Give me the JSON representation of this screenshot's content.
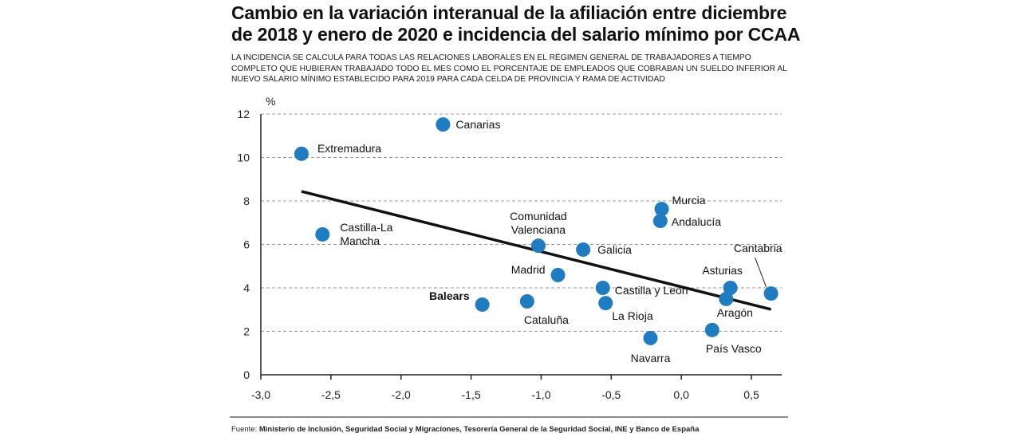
{
  "header": {
    "title": "Cambio en la variación interanual de la afiliación entre diciembre de 2018 y enero de 2020 e incidencia del salario mínimo por CCAA",
    "subtitle": "La incidencia se calcula para todas las relaciones laborales en el régimen general de trabajadores a tiempo completo que hubieran trabajado todo el mes como el porcentaje de empleados que cobraban un sueldo inferior al nuevo salario mínimo establecido para 2019 para cada celda de provincia y rama de actividad"
  },
  "chart_data": {
    "type": "scatter",
    "title": "Cambio en la variación interanual de la afiliación entre diciembre de 2018 y enero de 2020 e incidencia del salario mínimo por CCAA",
    "xlabel": "",
    "ylabel": "%",
    "xlim": [
      -3.0,
      0.7
    ],
    "ylim": [
      0,
      12
    ],
    "x_ticks": [
      -3.0,
      -2.5,
      -2.0,
      -1.5,
      -1.0,
      -0.5,
      0.0,
      0.5
    ],
    "x_tick_labels": [
      "-3,0",
      "-2,5",
      "-2,0",
      "-1,5",
      "-1,0",
      "-0,5",
      "0,0",
      "0,5"
    ],
    "y_ticks": [
      0,
      2,
      4,
      6,
      8,
      10,
      12
    ],
    "y_tick_labels": [
      "0",
      "2",
      "4",
      "6",
      "8",
      "10",
      "12"
    ],
    "grid": "horizontal dashed",
    "point_color": "#1f7cc1",
    "trendline_color": "#111111",
    "points": [
      {
        "label": "Extremadura",
        "x": -2.71,
        "y": 10.17
      },
      {
        "label": "Canarias",
        "x": -1.7,
        "y": 11.52
      },
      {
        "label": "Castilla-La Mancha",
        "x": -2.56,
        "y": 6.46
      },
      {
        "label": "Comunidad Valenciana",
        "x": -1.02,
        "y": 5.94
      },
      {
        "label": "Galicia",
        "x": -0.7,
        "y": 5.76
      },
      {
        "label": "Madrid",
        "x": -0.88,
        "y": 4.59
      },
      {
        "label": "Murcia",
        "x": -0.14,
        "y": 7.63
      },
      {
        "label": "Andalucía",
        "x": -0.15,
        "y": 7.08
      },
      {
        "label": "Castilla y León",
        "x": -0.56,
        "y": 4.0
      },
      {
        "label": "La Rioja",
        "x": -0.54,
        "y": 3.3
      },
      {
        "label": "Balears",
        "x": -1.42,
        "y": 3.23
      },
      {
        "label": "Cataluña",
        "x": -1.1,
        "y": 3.38
      },
      {
        "label": "Navarra",
        "x": -0.22,
        "y": 1.69
      },
      {
        "label": "País Vasco",
        "x": 0.22,
        "y": 2.06
      },
      {
        "label": "Asturias",
        "x": 0.35,
        "y": 4.0
      },
      {
        "label": "Aragón",
        "x": 0.32,
        "y": 3.49
      },
      {
        "label": "Cantabria",
        "x": 0.64,
        "y": 3.74
      }
    ],
    "trendline": {
      "x": [
        -2.71,
        0.64
      ],
      "y": [
        8.44,
        3.01
      ]
    }
  },
  "footer": {
    "source_label": "Fuente:",
    "source_text": "Ministerio de Inclusión, Seguridad Social y Migraciones, Tesorería General de la Seguridad Social, INE y Banco de España"
  }
}
